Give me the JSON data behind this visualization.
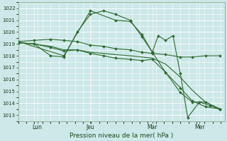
{
  "bg_color": "#cce8e8",
  "grid_color": "#ffffff",
  "line_color": "#2d6a2d",
  "xlabel": "Pression niveau de la mer( hPa )",
  "ylim": [
    1012.5,
    1022.5
  ],
  "yticks": [
    1013,
    1014,
    1015,
    1016,
    1017,
    1018,
    1019,
    1020,
    1021,
    1022
  ],
  "xlim": [
    0.0,
    7.0
  ],
  "xtick_labels": [
    "Lun",
    "Jeu",
    "Mar",
    "Mer"
  ],
  "xtick_positions": [
    0.65,
    2.45,
    4.55,
    6.15
  ],
  "vline_positions": [
    0.65,
    2.45,
    4.55,
    6.15
  ],
  "series": [
    {
      "x": [
        0.0,
        0.55,
        1.1,
        1.55,
        2.0,
        2.45,
        2.9,
        3.3,
        3.8,
        4.2,
        4.55,
        5.0,
        5.5,
        5.9,
        6.35,
        6.85
      ],
      "y": [
        1019.1,
        1019.0,
        1018.0,
        1017.9,
        1020.0,
        1021.5,
        1021.8,
        1021.5,
        1021.0,
        1019.6,
        1018.3,
        1016.6,
        1014.9,
        1014.1,
        1014.1,
        1013.5
      ],
      "with_markers": true
    },
    {
      "x": [
        0.0,
        0.55,
        1.1,
        1.55,
        2.0,
        2.45,
        2.9,
        3.3,
        3.8,
        4.2,
        4.55,
        5.0,
        5.5,
        5.9,
        6.35,
        6.85
      ],
      "y": [
        1019.1,
        1019.0,
        1018.8,
        1018.5,
        1018.5,
        1018.3,
        1018.2,
        1018.1,
        1018.0,
        1017.9,
        1017.8,
        1017.3,
        1016.2,
        1015.1,
        1014.1,
        1013.5
      ],
      "with_markers": false
    },
    {
      "x": [
        0.0,
        0.55,
        1.1,
        1.55,
        2.0,
        2.45,
        2.9,
        3.3,
        3.8,
        4.2,
        4.55,
        5.0,
        5.5,
        5.9,
        6.35,
        6.85
      ],
      "y": [
        1019.2,
        1019.3,
        1019.4,
        1019.3,
        1019.2,
        1018.9,
        1018.8,
        1018.6,
        1018.5,
        1018.3,
        1018.2,
        1018.1,
        1017.9,
        1017.9,
        1018.0,
        1018.0
      ],
      "with_markers": true
    },
    {
      "x": [
        0.0,
        0.55,
        1.1,
        1.55,
        2.0,
        2.45,
        2.9,
        3.3,
        3.8,
        4.2,
        4.55,
        5.0,
        5.5,
        5.9,
        6.35,
        6.85
      ],
      "y": [
        1019.1,
        1019.0,
        1018.7,
        1018.4,
        1018.5,
        1018.2,
        1018.0,
        1017.8,
        1017.7,
        1017.6,
        1017.7,
        1016.6,
        1015.3,
        1014.2,
        1013.7,
        1013.5
      ],
      "with_markers": true
    },
    {
      "x": [
        0.0,
        1.55,
        2.45,
        3.3,
        3.8,
        4.2,
        4.55,
        4.75,
        5.0,
        5.25,
        5.5,
        5.75,
        6.15,
        6.5,
        6.85
      ],
      "y": [
        1019.2,
        1018.0,
        1021.8,
        1021.0,
        1020.9,
        1019.8,
        1018.3,
        1019.7,
        1019.3,
        1019.7,
        1016.5,
        1012.8,
        1014.1,
        1013.8,
        1013.5
      ],
      "with_markers": true
    }
  ]
}
